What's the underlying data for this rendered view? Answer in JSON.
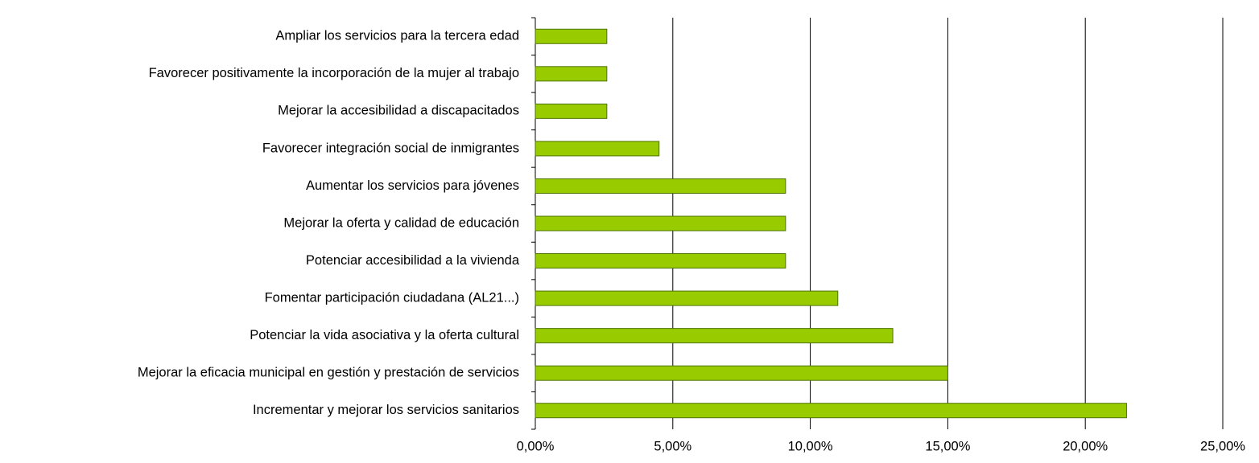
{
  "chart_data": {
    "type": "bar",
    "orientation": "horizontal",
    "categories": [
      "Ampliar los servicios para la tercera edad",
      "Favorecer positivamente la incorporación de la mujer al trabajo",
      "Mejorar la accesibilidad a discapacitados",
      "Favorecer integración social de inmigrantes",
      "Aumentar los servicios para jóvenes",
      "Mejorar la oferta y calidad de educación",
      "Potenciar accesibilidad a la vivienda",
      "Fomentar participación ciudadana (AL21...)",
      "Potenciar la vida asociativa y la oferta cultural",
      "Mejorar la eficacia municipal en gestión y prestación de servicios",
      "Incrementar y mejorar los servicios sanitarios"
    ],
    "values": [
      2.6,
      2.6,
      2.6,
      4.5,
      9.1,
      9.1,
      9.1,
      11.0,
      13.0,
      15.0,
      21.5
    ],
    "color": "#99cc00",
    "edge_color": "#4d7300",
    "xlim": [
      0,
      25
    ],
    "xticks": [
      {
        "value": 0,
        "label": "0,00%"
      },
      {
        "value": 5,
        "label": "5,00%"
      },
      {
        "value": 10,
        "label": "10,00%"
      },
      {
        "value": 15,
        "label": "15,00%"
      },
      {
        "value": 20,
        "label": "20,00%"
      },
      {
        "value": 25,
        "label": "25,00%"
      }
    ],
    "grid": true
  }
}
